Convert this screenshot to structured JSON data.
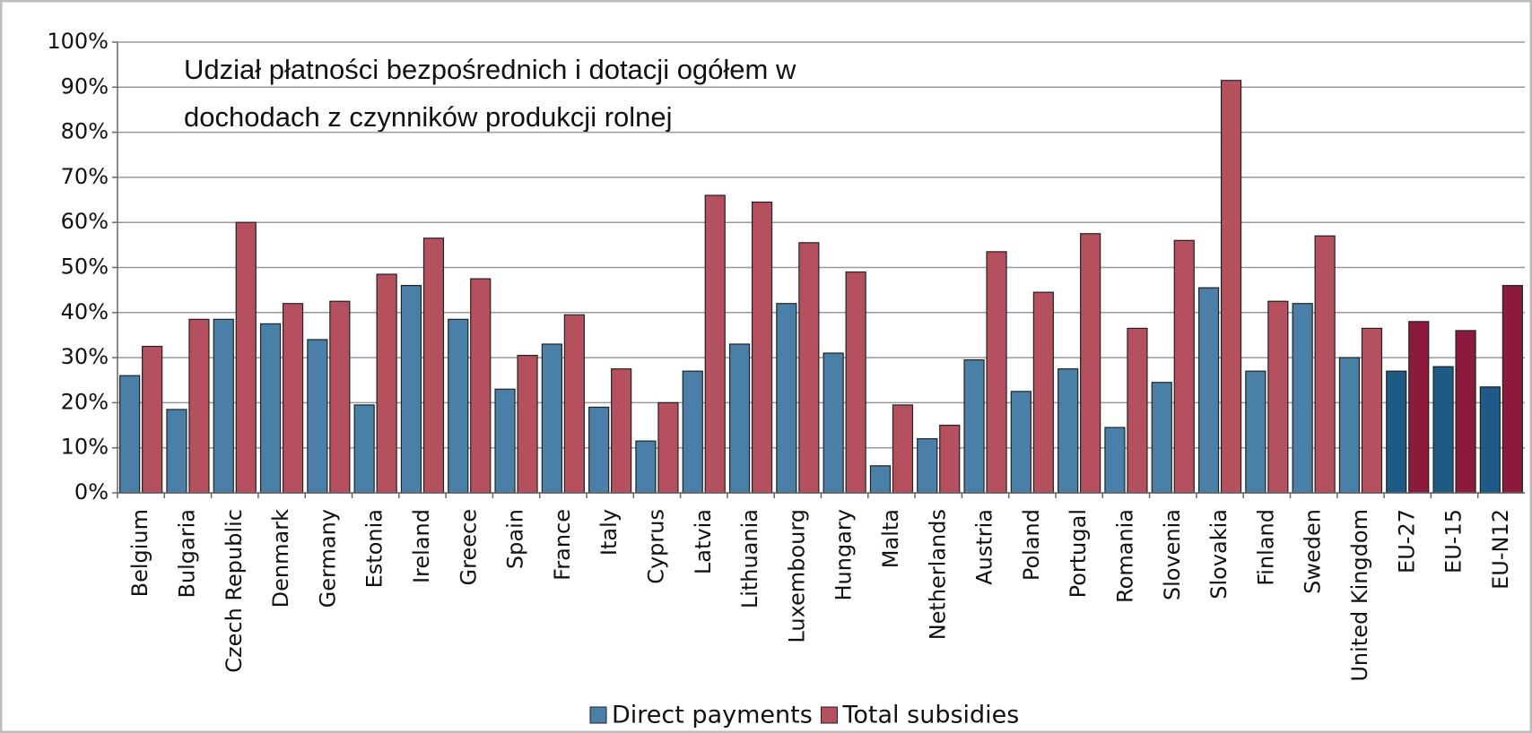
{
  "chart_data": {
    "type": "bar",
    "title": [
      "Udział płatności bezpośrednich i dotacji ogółem w",
      "dochodach z czynników produkcji rolnej"
    ],
    "categories": [
      "Belgium",
      "Bulgaria",
      "Czech Republic",
      "Denmark",
      "Germany",
      "Estonia",
      "Ireland",
      "Greece",
      "Spain",
      "France",
      "Italy",
      "Cyprus",
      "Latvia",
      "Lithuania",
      "Luxembourg",
      "Hungary",
      "Malta",
      "Netherlands",
      "Austria",
      "Poland",
      "Portugal",
      "Romania",
      "Slovenia",
      "Slovakia",
      "Finland",
      "Sweden",
      "United Kingdom",
      "EU-27",
      "EU-15",
      "EU-N12"
    ],
    "series": [
      {
        "name": "Direct payments",
        "color": "#4a7fa8",
        "colors": [
          "#4a7fa8",
          "#4a7fa8",
          "#4a7fa8",
          "#4a7fa8",
          "#4a7fa8",
          "#4a7fa8",
          "#4a7fa8",
          "#4a7fa8",
          "#4a7fa8",
          "#4a7fa8",
          "#4a7fa8",
          "#4a7fa8",
          "#4a7fa8",
          "#4a7fa8",
          "#4a7fa8",
          "#4a7fa8",
          "#4a7fa8",
          "#4a7fa8",
          "#4a7fa8",
          "#4a7fa8",
          "#4a7fa8",
          "#4a7fa8",
          "#4a7fa8",
          "#4a7fa8",
          "#4a7fa8",
          "#4a7fa8",
          "#4a7fa8",
          "#1d5a86",
          "#1d5a86",
          "#1d5a86"
        ],
        "values": [
          26,
          18.5,
          38.5,
          37.5,
          34,
          19.5,
          46,
          38.5,
          23,
          33,
          19,
          11.5,
          27,
          33,
          42,
          31,
          6,
          12,
          29.5,
          22.5,
          27.5,
          14.5,
          24.5,
          45.5,
          27,
          42,
          30,
          27,
          28,
          23.5
        ]
      },
      {
        "name": "Total subsidies",
        "color": "#b5505f",
        "colors": [
          "#b5505f",
          "#b5505f",
          "#b5505f",
          "#b5505f",
          "#b5505f",
          "#b5505f",
          "#b5505f",
          "#b5505f",
          "#b5505f",
          "#b5505f",
          "#b5505f",
          "#b5505f",
          "#b5505f",
          "#b5505f",
          "#b5505f",
          "#b5505f",
          "#b5505f",
          "#b5505f",
          "#b5505f",
          "#b5505f",
          "#b5505f",
          "#b5505f",
          "#b5505f",
          "#b5505f",
          "#b5505f",
          "#b5505f",
          "#b5505f",
          "#8c1a3c",
          "#8c1a3c",
          "#8c1a3c"
        ],
        "values": [
          32.5,
          38.5,
          60,
          42,
          42.5,
          48.5,
          56.5,
          47.5,
          30.5,
          39.5,
          27.5,
          20,
          66,
          64.5,
          55.5,
          49,
          19.5,
          15,
          53.5,
          44.5,
          57.5,
          36.5,
          56,
          91.5,
          42.5,
          57,
          36.5,
          38,
          36,
          46
        ]
      }
    ],
    "ylim": [
      0,
      100
    ],
    "yticks": [
      {
        "value": 0,
        "label": "0%"
      },
      {
        "value": 10,
        "label": "10%"
      },
      {
        "value": 20,
        "label": "20%"
      },
      {
        "value": 30,
        "label": "30%"
      },
      {
        "value": 40,
        "label": "40%"
      },
      {
        "value": 50,
        "label": "50%"
      },
      {
        "value": 60,
        "label": "60%"
      },
      {
        "value": 70,
        "label": "70%"
      },
      {
        "value": 80,
        "label": "80%"
      },
      {
        "value": 90,
        "label": "90%"
      },
      {
        "value": 100,
        "label": "100%"
      }
    ],
    "grid": true,
    "legend": "bottom"
  }
}
